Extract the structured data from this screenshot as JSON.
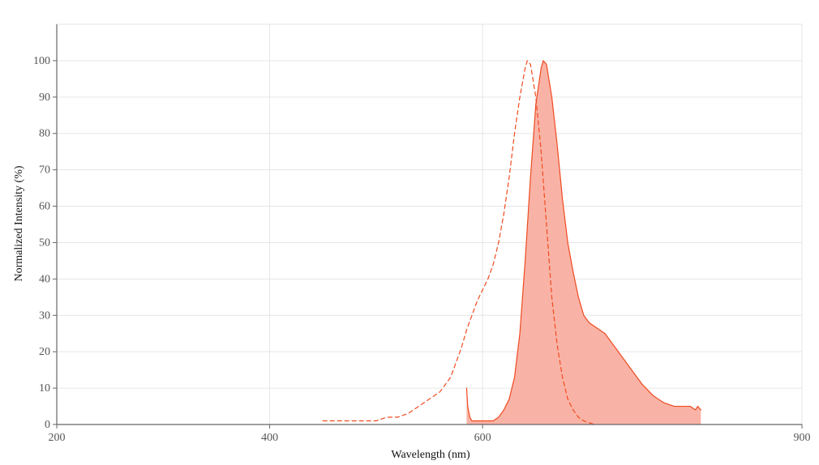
{
  "chart_data": {
    "type": "area",
    "xlabel": "Wavelength (nm)",
    "ylabel": "Normalized Intensity (%)",
    "xlim": [
      200,
      900
    ],
    "ylim": [
      0,
      110
    ],
    "x_ticks": [
      200,
      400,
      600,
      900
    ],
    "y_ticks": [
      0,
      10,
      20,
      30,
      40,
      50,
      60,
      70,
      80,
      90,
      100
    ],
    "grid": true,
    "legend": "none",
    "colors": {
      "excitation_line": "#f04a1f",
      "emission_line": "#ee4a20",
      "emission_fill": "#f9b3a6",
      "axis": "#666666",
      "grid": "#e6e6e6"
    },
    "series": [
      {
        "id": "excitation",
        "style": "dashed-line",
        "points": [
          [
            450,
            1
          ],
          [
            460,
            1
          ],
          [
            470,
            1
          ],
          [
            480,
            1
          ],
          [
            490,
            1
          ],
          [
            500,
            1
          ],
          [
            510,
            2
          ],
          [
            520,
            2
          ],
          [
            530,
            3
          ],
          [
            540,
            5
          ],
          [
            550,
            7
          ],
          [
            560,
            9
          ],
          [
            565,
            11
          ],
          [
            570,
            13
          ],
          [
            575,
            17
          ],
          [
            580,
            21
          ],
          [
            585,
            26
          ],
          [
            590,
            30
          ],
          [
            595,
            34
          ],
          [
            600,
            37
          ],
          [
            605,
            40
          ],
          [
            610,
            44
          ],
          [
            615,
            50
          ],
          [
            620,
            58
          ],
          [
            625,
            68
          ],
          [
            630,
            80
          ],
          [
            635,
            90
          ],
          [
            640,
            98
          ],
          [
            642,
            100
          ],
          [
            645,
            99
          ],
          [
            650,
            90
          ],
          [
            655,
            75
          ],
          [
            660,
            55
          ],
          [
            665,
            35
          ],
          [
            670,
            22
          ],
          [
            675,
            13
          ],
          [
            680,
            7
          ],
          [
            685,
            4
          ],
          [
            690,
            2
          ],
          [
            695,
            1
          ],
          [
            700,
            0.5
          ],
          [
            705,
            0
          ]
        ]
      },
      {
        "id": "emission",
        "style": "filled-area",
        "points": [
          [
            585,
            10
          ],
          [
            586,
            5
          ],
          [
            588,
            2
          ],
          [
            590,
            1
          ],
          [
            595,
            1
          ],
          [
            600,
            1
          ],
          [
            605,
            1
          ],
          [
            610,
            1
          ],
          [
            615,
            2
          ],
          [
            620,
            4
          ],
          [
            625,
            7
          ],
          [
            630,
            13
          ],
          [
            635,
            25
          ],
          [
            640,
            45
          ],
          [
            645,
            68
          ],
          [
            650,
            88
          ],
          [
            655,
            98
          ],
          [
            657,
            100
          ],
          [
            660,
            99
          ],
          [
            665,
            90
          ],
          [
            670,
            77
          ],
          [
            675,
            62
          ],
          [
            680,
            50
          ],
          [
            685,
            42
          ],
          [
            690,
            35
          ],
          [
            695,
            30
          ],
          [
            700,
            28
          ],
          [
            705,
            27
          ],
          [
            710,
            26
          ],
          [
            715,
            25
          ],
          [
            720,
            23
          ],
          [
            725,
            21
          ],
          [
            730,
            19
          ],
          [
            735,
            17
          ],
          [
            740,
            15
          ],
          [
            745,
            13
          ],
          [
            750,
            11
          ],
          [
            755,
            9.5
          ],
          [
            760,
            8
          ],
          [
            765,
            7
          ],
          [
            770,
            6
          ],
          [
            775,
            5.5
          ],
          [
            780,
            5
          ],
          [
            785,
            5
          ],
          [
            790,
            5
          ],
          [
            795,
            5
          ],
          [
            800,
            4
          ],
          [
            802,
            5
          ],
          [
            805,
            4
          ]
        ]
      }
    ]
  }
}
